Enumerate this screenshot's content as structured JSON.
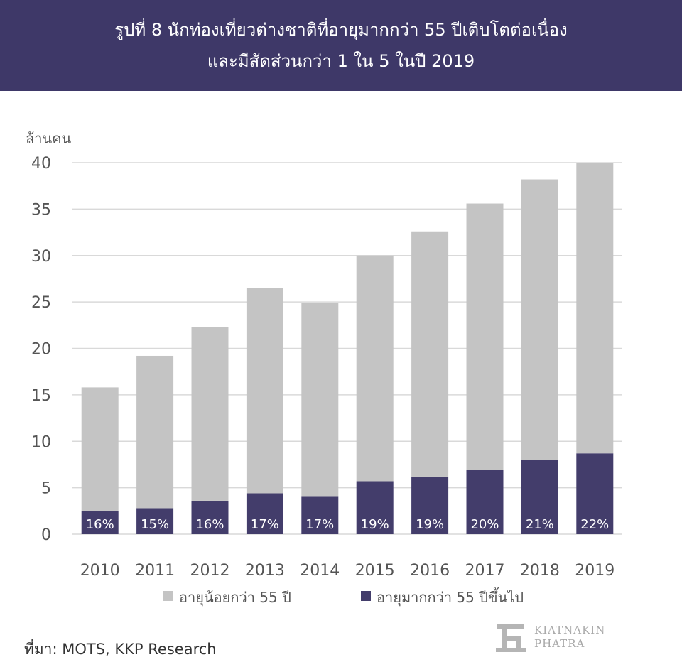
{
  "header": {
    "title_line1": "รูปที่ 8 นักท่องเที่ยวต่างชาติที่อายุมากกว่า 55 ปีเติบโตต่อเนื่อง",
    "title_line2": "และมีสัดส่วนกว่า 1 ใน 5 ในปี 2019"
  },
  "chart_data": {
    "type": "bar",
    "stacked": true,
    "ylabel": "ล้านคน",
    "ylim": [
      0,
      40
    ],
    "yticks": [
      0,
      5,
      10,
      15,
      20,
      25,
      30,
      35,
      40
    ],
    "grid": true,
    "legend_position": "bottom",
    "categories": [
      "2010",
      "2011",
      "2012",
      "2013",
      "2014",
      "2015",
      "2016",
      "2017",
      "2018",
      "2019"
    ],
    "series": [
      {
        "name": "อายุน้อยกว่า 55 ปี",
        "color": "#c4c4c4",
        "values": [
          13.3,
          16.4,
          18.7,
          22.1,
          20.8,
          24.3,
          26.4,
          28.7,
          30.2,
          31.3
        ]
      },
      {
        "name": "อายุมากกว่า 55 ปีขึ้นไป",
        "color": "#433d6b",
        "values": [
          2.5,
          2.8,
          3.6,
          4.4,
          4.1,
          5.7,
          6.2,
          6.9,
          8.0,
          8.7
        ]
      }
    ],
    "data_labels": [
      "16%",
      "15%",
      "16%",
      "17%",
      "17%",
      "19%",
      "19%",
      "20%",
      "21%",
      "22%"
    ]
  },
  "footer": {
    "source": "ที่มา: MOTS, KKP Research",
    "logo_line1": "KIATNAKIN",
    "logo_line2": "PHATRA"
  }
}
